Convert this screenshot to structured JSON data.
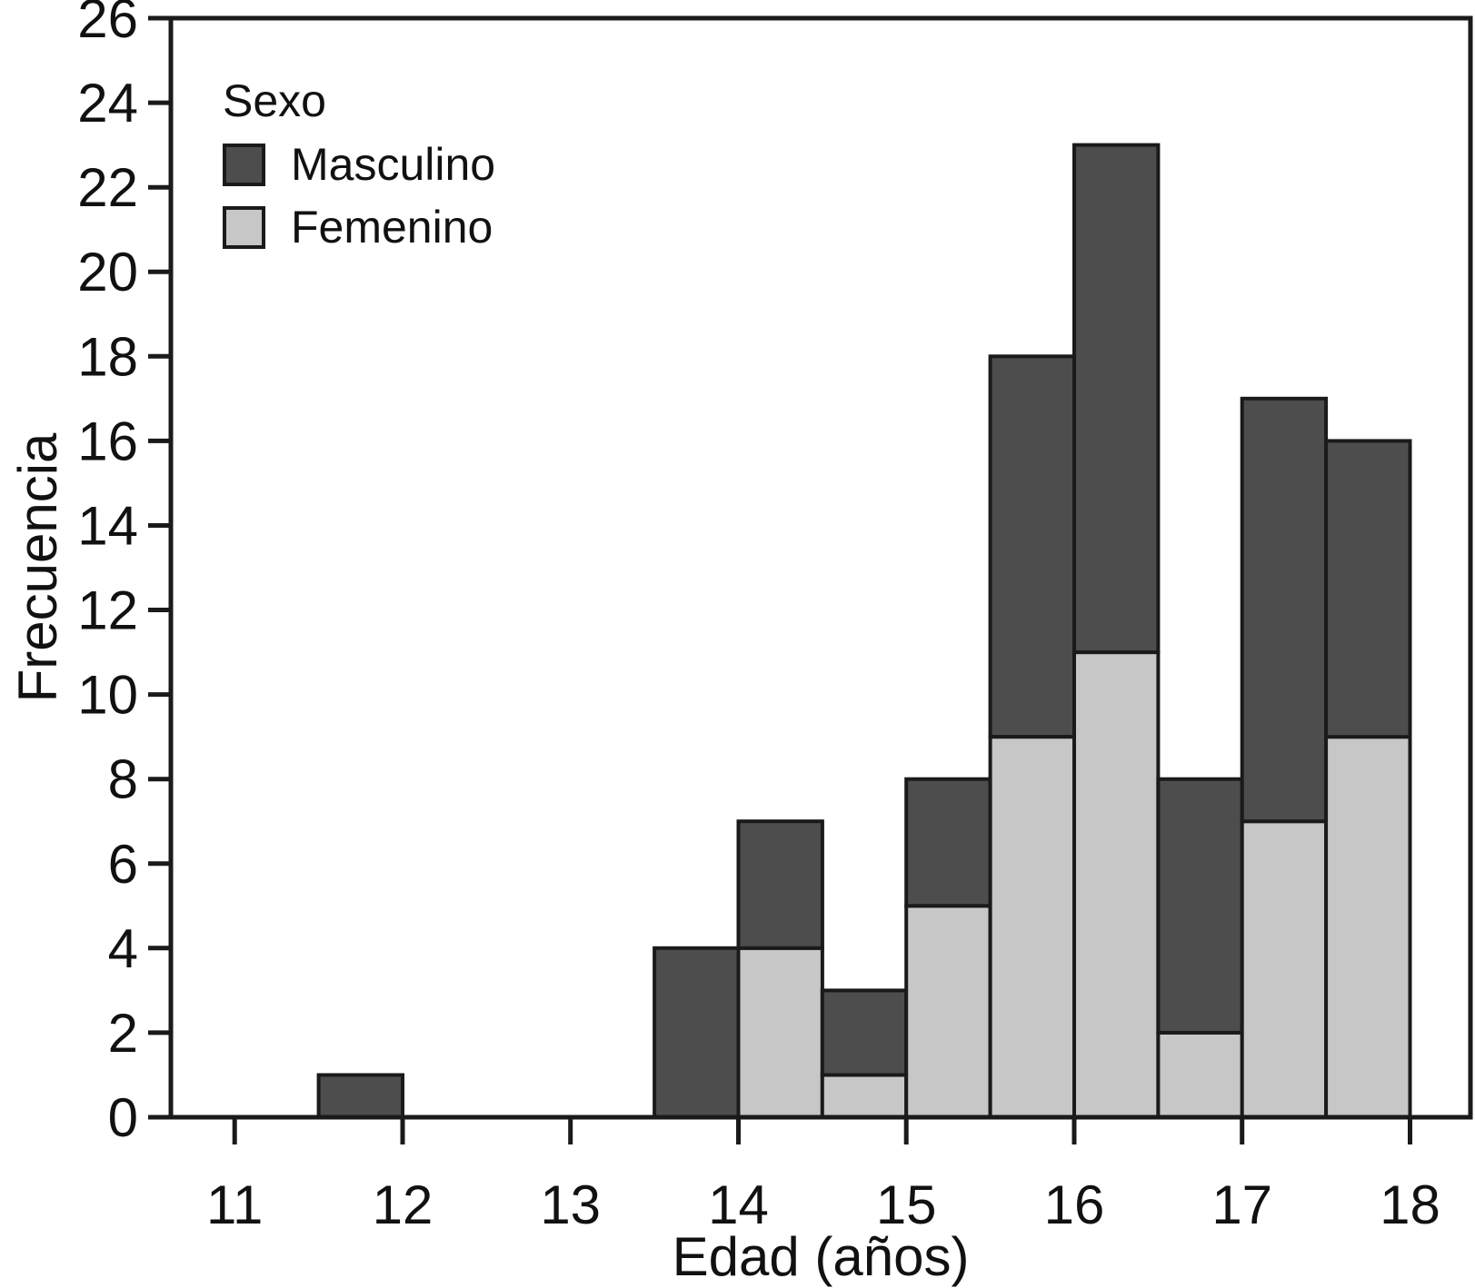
{
  "chart_data": {
    "type": "bar",
    "subtype": "stacked-histogram",
    "title": "",
    "xlabel": "Edad (años)",
    "ylabel": "Frecuencia",
    "legend_title": "Sexo",
    "legend_position": "upper-left-inside",
    "grid": false,
    "background": "#ffffff",
    "bar_edge_color": "#1a1a1a",
    "axis_color": "#1a1a1a",
    "bin_width": 0.5,
    "bins": [
      [
        11.5,
        12
      ],
      [
        13.5,
        14
      ],
      [
        14,
        14.5
      ],
      [
        14.5,
        15
      ],
      [
        15,
        15.5
      ],
      [
        15.5,
        16
      ],
      [
        16,
        16.5
      ],
      [
        16.5,
        17
      ],
      [
        17,
        17.5
      ],
      [
        17.5,
        18
      ]
    ],
    "series": [
      {
        "name": "Masculino",
        "color": "#4d4d4d",
        "values": [
          1,
          4,
          3,
          2,
          3,
          9,
          12,
          6,
          10,
          7
        ]
      },
      {
        "name": "Femenino",
        "color": "#c7c7c7",
        "values": [
          0,
          0,
          4,
          1,
          5,
          9,
          11,
          2,
          7,
          9
        ]
      }
    ],
    "stack_order_bottom_to_top": [
      "Femenino",
      "Masculino"
    ],
    "bin_totals": [
      1,
      4,
      7,
      3,
      8,
      18,
      23,
      8,
      17,
      16
    ],
    "x_ticks": [
      11,
      12,
      13,
      14,
      15,
      16,
      17,
      18
    ],
    "y_ticks": [
      0,
      2,
      4,
      6,
      8,
      10,
      12,
      14,
      16,
      18,
      20,
      22,
      24,
      26
    ],
    "xlim": [
      10.62,
      18.36
    ],
    "ylim": [
      0,
      26
    ]
  }
}
